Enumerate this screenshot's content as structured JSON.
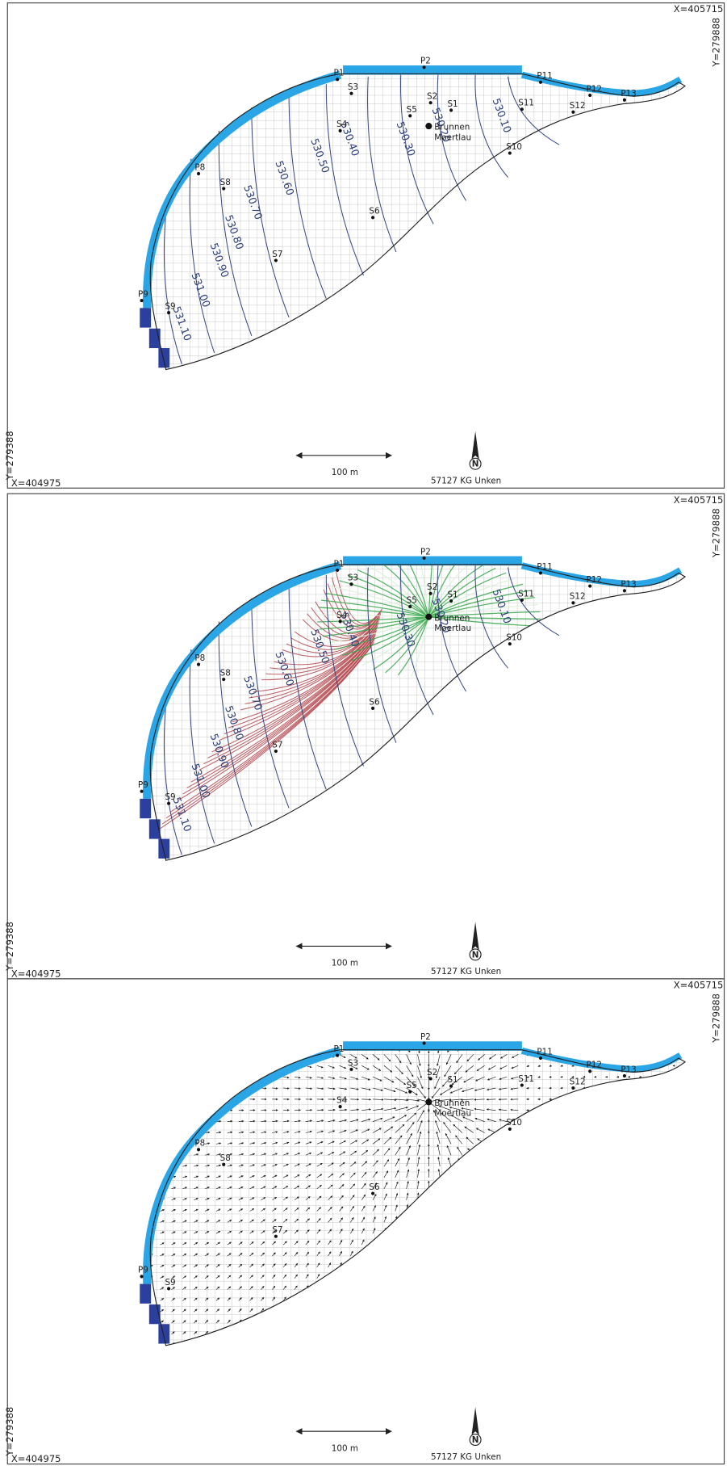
{
  "panels": [
    {
      "corner_x_max": "X=405715",
      "corner_y_max": "Y=279888",
      "corner_y_min": "Y=279388",
      "corner_x_min": "X=404975",
      "scale_label": "100 m",
      "north": "N",
      "credit": "57127 KG Unken",
      "well_name": [
        "Brunnen",
        "Moertlau"
      ],
      "points": [
        "P1",
        "P2",
        "P11",
        "P12",
        "P13",
        "P8",
        "P9",
        "S1",
        "S2",
        "S3",
        "S4",
        "S5",
        "S6",
        "S7",
        "S8",
        "S9",
        "S10",
        "S11",
        "S12"
      ],
      "contours": [
        "530.10",
        "530.20",
        "530.30",
        "530.40",
        "530.50",
        "530.60",
        "530.70",
        "530.80",
        "530.90",
        "531.00",
        "531.10"
      ]
    },
    {
      "corner_x_max": "X=405715",
      "corner_y_max": "Y=279888",
      "corner_y_min": "Y=279388",
      "corner_x_min": "X=404975",
      "scale_label": "100 m",
      "north": "N",
      "credit": "57127 KG Unken",
      "well_name": [
        "Brunnen",
        "Moertlau"
      ],
      "points": [
        "P1",
        "P2",
        "P11",
        "P12",
        "P13",
        "P8",
        "P9",
        "S1",
        "S2",
        "S3",
        "S4",
        "S5",
        "S6",
        "S7",
        "S8",
        "S9",
        "S10",
        "S11",
        "S12"
      ],
      "contours": [
        "530.10",
        "530.20",
        "530.30",
        "530.40",
        "530.50",
        "530.60",
        "530.70",
        "530.80",
        "530.90",
        "531.00",
        "531.10"
      ]
    },
    {
      "corner_x_max": "X=405715",
      "corner_y_max": "Y=279888",
      "corner_y_min": "Y=279388",
      "corner_x_min": "X=404975",
      "scale_label": "100 m",
      "north": "N",
      "credit": "57127 KG Unken",
      "well_name": [
        "Brunnen",
        "Moertlau"
      ],
      "points": [
        "P1",
        "P2",
        "P11",
        "P12",
        "P13",
        "P8",
        "P9",
        "S1",
        "S2",
        "S3",
        "S4",
        "S5",
        "S6",
        "S7",
        "S8",
        "S9",
        "S10",
        "S11",
        "S12"
      ],
      "contours": []
    }
  ]
}
